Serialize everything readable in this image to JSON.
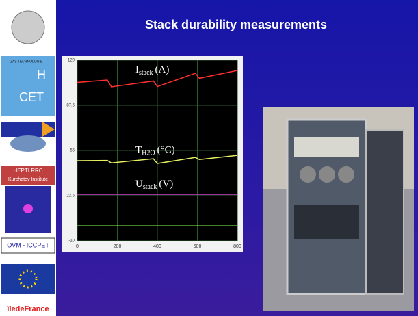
{
  "slide": {
    "title": "Stack durability measurements",
    "logos": {
      "cet": "CET",
      "h": "H",
      "gas": "GAS TECHNOLOGIE",
      "hepti": "HEPTI RRC",
      "kurchatov": "Kurchatov Institute",
      "ovm": "OVM - ICCPET",
      "ile": "îledeFrance"
    }
  },
  "chart_data": {
    "type": "line",
    "x": [
      0,
      150,
      170,
      380,
      400,
      590,
      610,
      800
    ],
    "xlim": [
      0,
      800
    ],
    "xticks": [
      0,
      200,
      400,
      600,
      800
    ],
    "ylim": [
      -10,
      120
    ],
    "yticks": [
      -10,
      22.5,
      55,
      87.5,
      120
    ],
    "grid": true,
    "series": [
      {
        "name": "I",
        "name_sub": "stack",
        "unit": "(A)",
        "color": "#ff3030",
        "values": [
          104,
          105.7,
          100.8,
          105,
          101,
          110.6,
          107,
          112.6
        ]
      },
      {
        "name": "T",
        "name_sub": "H2O",
        "unit": "(°C)",
        "color": "#e8f060",
        "values": [
          47.6,
          47.8,
          46,
          49,
          45.6,
          50,
          48.5,
          51.5
        ]
      },
      {
        "name": "U",
        "name_sub": "stack",
        "unit": "(V)",
        "color": "#d040d0",
        "values": [
          23.5,
          23.5,
          23.5,
          23.5,
          23.5,
          23.5,
          23.5,
          23.5
        ]
      },
      {
        "color": "#70d040",
        "values": [
          0.8,
          0.8,
          0.8,
          0.8,
          0.8,
          0.8,
          0.8,
          0.8
        ]
      }
    ]
  }
}
